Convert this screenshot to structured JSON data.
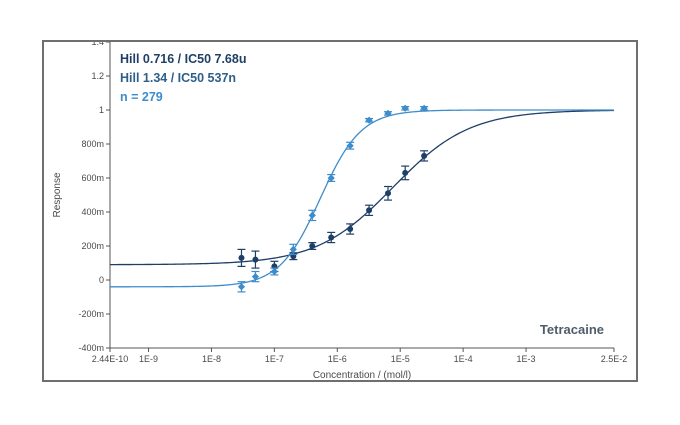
{
  "chart_data": {
    "type": "scatter",
    "title": "",
    "xlabel": "Concentration / (mol/l)",
    "ylabel": "Response",
    "x_scale": "log",
    "xlim": [
      2.44e-10,
      0.025
    ],
    "ylim": [
      -0.4,
      1.4
    ],
    "grid": false,
    "legend_placement": "top-left",
    "x_ticks": [
      {
        "value": 2.44e-10,
        "label": "2.44E-10"
      },
      {
        "value": 1e-09,
        "label": "1E-9"
      },
      {
        "value": 1e-08,
        "label": "1E-8"
      },
      {
        "value": 1e-07,
        "label": "1E-7"
      },
      {
        "value": 1e-06,
        "label": "1E-6"
      },
      {
        "value": 1e-05,
        "label": "1E-5"
      },
      {
        "value": 0.0001,
        "label": "1E-4"
      },
      {
        "value": 0.001,
        "label": "1E-3"
      },
      {
        "value": 0.025,
        "label": "2.5E-2"
      }
    ],
    "y_ticks": [
      {
        "value": 1.4,
        "label": "1.4"
      },
      {
        "value": 1.2,
        "label": "1.2"
      },
      {
        "value": 1.0,
        "label": "1"
      },
      {
        "value": 0.8,
        "label": "800m"
      },
      {
        "value": 0.6,
        "label": "600m"
      },
      {
        "value": 0.4,
        "label": "400m"
      },
      {
        "value": 0.2,
        "label": "200m"
      },
      {
        "value": 0.0,
        "label": "0"
      },
      {
        "value": -0.2,
        "label": "-200m"
      },
      {
        "value": -0.4,
        "label": "-400m"
      }
    ],
    "legend": [
      {
        "label": "Hill 0.716 / IC50 7.68u",
        "color": "#1f3f66"
      },
      {
        "label": "Hill 1.34 / IC50 537n",
        "color": "#2e5f88"
      },
      {
        "label": "n = 279",
        "color": "#3d8ccc"
      }
    ],
    "annotation": "Tetracaine",
    "series": [
      {
        "name": "Hill 0.716 / IC50 7.68u",
        "color": "#1f3f66",
        "marker": "circle",
        "fit": {
          "bottom": 0.09,
          "top": 1.0,
          "ic50": 7.68e-06,
          "hill": 0.716
        },
        "points": [
          {
            "x": 3e-08,
            "y": 0.13,
            "err": 0.05
          },
          {
            "x": 5e-08,
            "y": 0.12,
            "err": 0.05
          },
          {
            "x": 1e-07,
            "y": 0.08,
            "err": 0.03
          },
          {
            "x": 2e-07,
            "y": 0.14,
            "err": 0.02
          },
          {
            "x": 4e-07,
            "y": 0.2,
            "err": 0.02
          },
          {
            "x": 8e-07,
            "y": 0.25,
            "err": 0.03
          },
          {
            "x": 1.6e-06,
            "y": 0.3,
            "err": 0.03
          },
          {
            "x": 3.2e-06,
            "y": 0.41,
            "err": 0.03
          },
          {
            "x": 6.4e-06,
            "y": 0.51,
            "err": 0.04
          },
          {
            "x": 1.2e-05,
            "y": 0.63,
            "err": 0.04
          },
          {
            "x": 2.4e-05,
            "y": 0.73,
            "err": 0.03
          }
        ]
      },
      {
        "name": "Hill 1.34 / IC50 537n",
        "color": "#3d8ccc",
        "marker": "diamond",
        "fit": {
          "bottom": -0.04,
          "top": 1.0,
          "ic50": 5.37e-07,
          "hill": 1.34
        },
        "points": [
          {
            "x": 3e-08,
            "y": -0.04,
            "err": 0.03
          },
          {
            "x": 5e-08,
            "y": 0.02,
            "err": 0.03
          },
          {
            "x": 1e-07,
            "y": 0.05,
            "err": 0.02
          },
          {
            "x": 2e-07,
            "y": 0.18,
            "err": 0.03
          },
          {
            "x": 4e-07,
            "y": 0.38,
            "err": 0.03
          },
          {
            "x": 8e-07,
            "y": 0.6,
            "err": 0.02
          },
          {
            "x": 1.6e-06,
            "y": 0.79,
            "err": 0.02
          },
          {
            "x": 3.2e-06,
            "y": 0.94,
            "err": 0.01
          },
          {
            "x": 6.4e-06,
            "y": 0.98,
            "err": 0.01
          },
          {
            "x": 1.2e-05,
            "y": 1.01,
            "err": 0.01
          },
          {
            "x": 2.4e-05,
            "y": 1.01,
            "err": 0.01
          }
        ]
      }
    ]
  }
}
